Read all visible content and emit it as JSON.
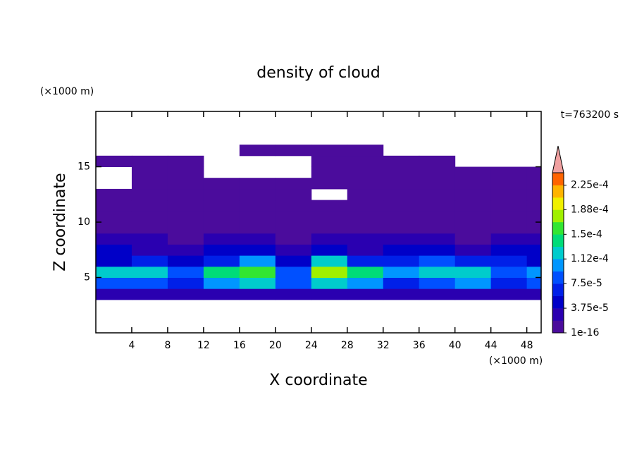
{
  "chart_data": {
    "type": "contour",
    "title": "density of cloud",
    "time_label": "t=763200 s",
    "xlabel": "X coordinate",
    "ylabel": "Z coordinate",
    "x_unit": "(×1000 m)",
    "y_unit": "(×1000 m)",
    "xlim": [
      0,
      49.6
    ],
    "ylim": [
      0,
      20
    ],
    "xticks": [
      4,
      8,
      12,
      16,
      20,
      24,
      28,
      32,
      36,
      40,
      44,
      48
    ],
    "yticks": [
      5,
      10,
      15
    ],
    "x_bins": [
      0,
      4,
      8,
      12,
      16,
      20,
      24,
      28,
      32,
      36,
      40,
      44,
      48,
      49.6
    ],
    "z_bins": [
      3,
      4,
      5,
      6,
      7,
      8,
      9,
      10,
      11,
      12,
      13,
      14,
      15,
      16,
      17
    ],
    "values": [
      [
        3e-05,
        3e-05,
        3e-05,
        3e-05,
        3e-05,
        3e-05,
        3e-05,
        3e-05,
        3e-05,
        3e-05,
        3e-05,
        3e-05,
        3e-05
      ],
      [
        8e-05,
        9e-05,
        6e-05,
        0.0001,
        0.00012,
        8e-05,
        0.00013,
        0.00011,
        7e-05,
        9e-05,
        0.0001,
        7e-05,
        8e-05
      ],
      [
        0.00012,
        0.00013,
        9e-05,
        0.00014,
        0.00016,
        9e-05,
        0.00017,
        0.00014,
        0.00011,
        0.00013,
        0.00013,
        9e-05,
        0.00011
      ],
      [
        5e-05,
        6e-05,
        5e-05,
        7e-05,
        0.00011,
        5e-05,
        0.00012,
        6e-05,
        7e-05,
        8e-05,
        6e-05,
        6e-05,
        5e-05
      ],
      [
        4e-05,
        3e-05,
        3e-05,
        4e-05,
        4e-05,
        3e-05,
        4e-05,
        3e-05,
        4e-05,
        4e-05,
        3e-05,
        4e-05,
        4e-05
      ],
      [
        2e-05,
        2e-05,
        1e-05,
        2e-05,
        2e-05,
        1e-05,
        2e-05,
        2e-05,
        2e-05,
        2e-05,
        1e-05,
        2e-05,
        2e-05
      ],
      [
        8e-06,
        8e-06,
        8e-06,
        8e-06,
        8e-06,
        8e-06,
        8e-06,
        8e-06,
        8e-06,
        8e-06,
        8e-06,
        8e-06,
        8e-06
      ],
      [
        5e-06,
        5e-06,
        5e-06,
        5e-06,
        5e-06,
        5e-06,
        5e-06,
        5e-06,
        5e-06,
        5e-06,
        5e-06,
        5e-06,
        5e-06
      ],
      [
        4e-06,
        4e-06,
        4e-06,
        4e-06,
        4e-06,
        4e-06,
        4e-06,
        4e-06,
        4e-06,
        4e-06,
        4e-06,
        4e-06,
        4e-06
      ],
      [
        3e-06,
        3e-06,
        3e-06,
        3e-06,
        3e-06,
        3e-06,
        null,
        3e-06,
        3e-06,
        3e-06,
        3e-06,
        3e-06,
        3e-06
      ],
      [
        null,
        3e-06,
        3e-06,
        3e-06,
        3e-06,
        3e-06,
        3e-06,
        3e-06,
        3e-06,
        3e-06,
        3e-06,
        3e-06,
        3e-06
      ],
      [
        null,
        3e-06,
        3e-06,
        null,
        null,
        null,
        3e-06,
        3e-06,
        3e-06,
        3e-06,
        3e-06,
        3e-06,
        3e-06
      ],
      [
        3e-06,
        3e-06,
        3e-06,
        null,
        null,
        null,
        3e-06,
        3e-06,
        3e-06,
        3e-06,
        null,
        null,
        null
      ],
      [
        null,
        null,
        null,
        null,
        3e-06,
        3e-06,
        3e-06,
        3e-06,
        null,
        null,
        null,
        null,
        null
      ]
    ],
    "levels": [
      1e-16,
      1.875e-05,
      3.75e-05,
      5.625e-05,
      7.5e-05,
      9.375e-05,
      0.0001125,
      0.00013125,
      0.00015,
      0.00016875,
      0.0001875,
      0.00020625,
      0.000225,
      0.00024375
    ],
    "colors": [
      "#4b0c9c",
      "#2a00b0",
      "#0000c8",
      "#0020e8",
      "#0050ff",
      "#0096ff",
      "#00cccc",
      "#00dc78",
      "#32e632",
      "#a0f000",
      "#f0f000",
      "#ffb400",
      "#ff6400"
    ],
    "extend_color": "#f0a0a0",
    "cticks": [
      {
        "value": 1e-16,
        "label": "1e-16"
      },
      {
        "value": 3.75e-05,
        "label": "3.75e-5"
      },
      {
        "value": 7.5e-05,
        "label": "7.5e-5"
      },
      {
        "value": 0.0001125,
        "label": "1.12e-4"
      },
      {
        "value": 0.00015,
        "label": "1.5e-4"
      },
      {
        "value": 0.0001875,
        "label": "1.88e-4"
      },
      {
        "value": 0.000225,
        "label": "2.25e-4"
      }
    ]
  }
}
